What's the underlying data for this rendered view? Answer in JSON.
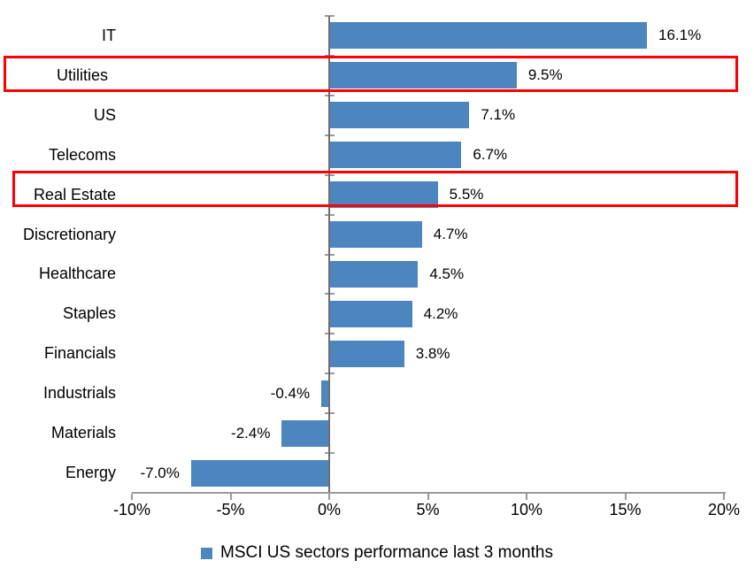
{
  "chart_data": {
    "type": "bar",
    "orientation": "horizontal",
    "title": "",
    "categories": [
      "IT",
      "Utilities",
      "US",
      "Telecoms",
      "Real Estate",
      "Discretionary",
      "Healthcare",
      "Staples",
      "Financials",
      "Industrials",
      "Materials",
      "Energy"
    ],
    "values": [
      16.1,
      9.5,
      7.1,
      6.7,
      5.5,
      4.7,
      4.5,
      4.2,
      3.8,
      -0.4,
      -2.4,
      -7.0
    ],
    "value_labels": [
      "16.1%",
      "9.5%",
      "7.1%",
      "6.7%",
      "5.5%",
      "4.7%",
      "4.5%",
      "4.2%",
      "3.8%",
      "-0.4%",
      "-2.4%",
      "-7.0%"
    ],
    "x_axis": {
      "min": -10,
      "max": 20,
      "tick_step": 5,
      "tick_labels": [
        "-10%",
        "-5%",
        "0%",
        "5%",
        "10%",
        "15%",
        "20%"
      ]
    },
    "grid": false,
    "legend": "MSCI US sectors performance last 3 months",
    "legend_position": "bottom-center",
    "bar_color": "#4d86bf",
    "axis_color": "#9a9a9a",
    "highlight_color": "#fe0000",
    "highlighted_categories": [
      "Utilities",
      "Real Estate"
    ]
  }
}
